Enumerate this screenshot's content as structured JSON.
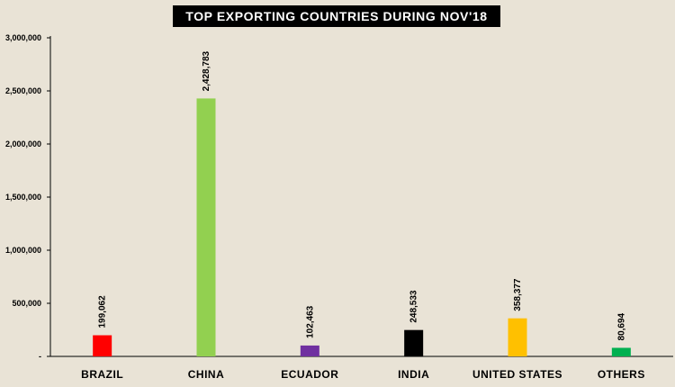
{
  "chart_data": {
    "type": "bar",
    "title": "TOP EXPORTING COUNTRIES DURING NOV'18",
    "xlabel": "",
    "ylabel": "",
    "categories": [
      "BRAZIL",
      "CHINA",
      "ECUADOR",
      "INDIA",
      "UNITED STATES",
      "OTHERS"
    ],
    "values": [
      199062,
      2428783,
      102463,
      248533,
      358377,
      80694
    ],
    "value_labels": [
      "199,062",
      "2,428,783",
      "102,463",
      "248,533",
      "358,377",
      "80,694"
    ],
    "bar_colors": [
      "#ff0000",
      "#92d050",
      "#7030a0",
      "#000000",
      "#ffc000",
      "#00b050"
    ],
    "ylim": [
      0,
      3000000
    ],
    "y_ticks": [
      0,
      500000,
      1000000,
      1500000,
      2000000,
      2500000,
      3000000
    ],
    "y_tick_labels": [
      "-",
      "500,000",
      "1,000,000",
      "1,500,000",
      "2,000,000",
      "2,500,000",
      "3,000,000"
    ],
    "grid": false,
    "legend": "none"
  },
  "colors": {
    "background": "#e9e3d6",
    "title_bg": "#000000",
    "title_text": "#ffffff",
    "axis": "#000000"
  }
}
